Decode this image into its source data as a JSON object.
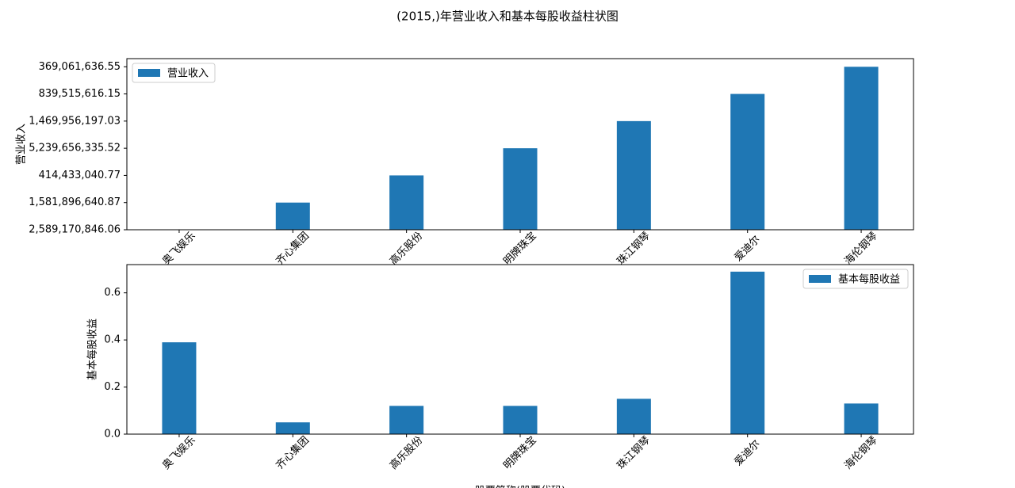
{
  "title": "(2015,)年营业收入和基本每股收益柱状图",
  "chart_data": [
    {
      "type": "bar",
      "ylabel": "营业收入",
      "legend": "upper left",
      "color": "#1f77b4",
      "categories": [
        "奥飞娱乐",
        "齐心集团",
        "高乐股份",
        "明牌珠宝",
        "珠江钢琴",
        "爱迪尔",
        "海伦钢琴"
      ],
      "series": [
        {
          "name": "营业收入",
          "color": "#1f77b4",
          "values": [
            0,
            1,
            2,
            3,
            4,
            5,
            6
          ]
        }
      ],
      "ylim": [
        0,
        6.3
      ],
      "yticks": [
        {
          "value": 0,
          "label": "2,589,170,846.06"
        },
        {
          "value": 1,
          "label": "1,581,896,640.87"
        },
        {
          "value": 2,
          "label": "414,433,040.77"
        },
        {
          "value": 3,
          "label": "5,239,656,335.52"
        },
        {
          "value": 4,
          "label": "1,469,956,197.03"
        },
        {
          "value": 5,
          "label": "839,515,616.15"
        },
        {
          "value": 6,
          "label": "369,061,636.55"
        }
      ]
    },
    {
      "type": "bar",
      "ylabel": "基本每股收益",
      "xlabel": "股票简称(股票代码)",
      "legend": "upper right",
      "categories": [
        "奥飞娱乐",
        "齐心集团",
        "高乐股份",
        "明牌珠宝",
        "珠江钢琴",
        "爱迪尔",
        "海伦钢琴"
      ],
      "series": [
        {
          "name": "基本每股收益",
          "color": "#1f77b4",
          "values": [
            0.39,
            0.05,
            0.12,
            0.12,
            0.15,
            0.69,
            0.13
          ]
        }
      ],
      "ylim": [
        0,
        0.72
      ],
      "yticks": [
        {
          "value": 0,
          "label": "0.0"
        },
        0.2,
        0.4,
        0.6
      ]
    }
  ]
}
